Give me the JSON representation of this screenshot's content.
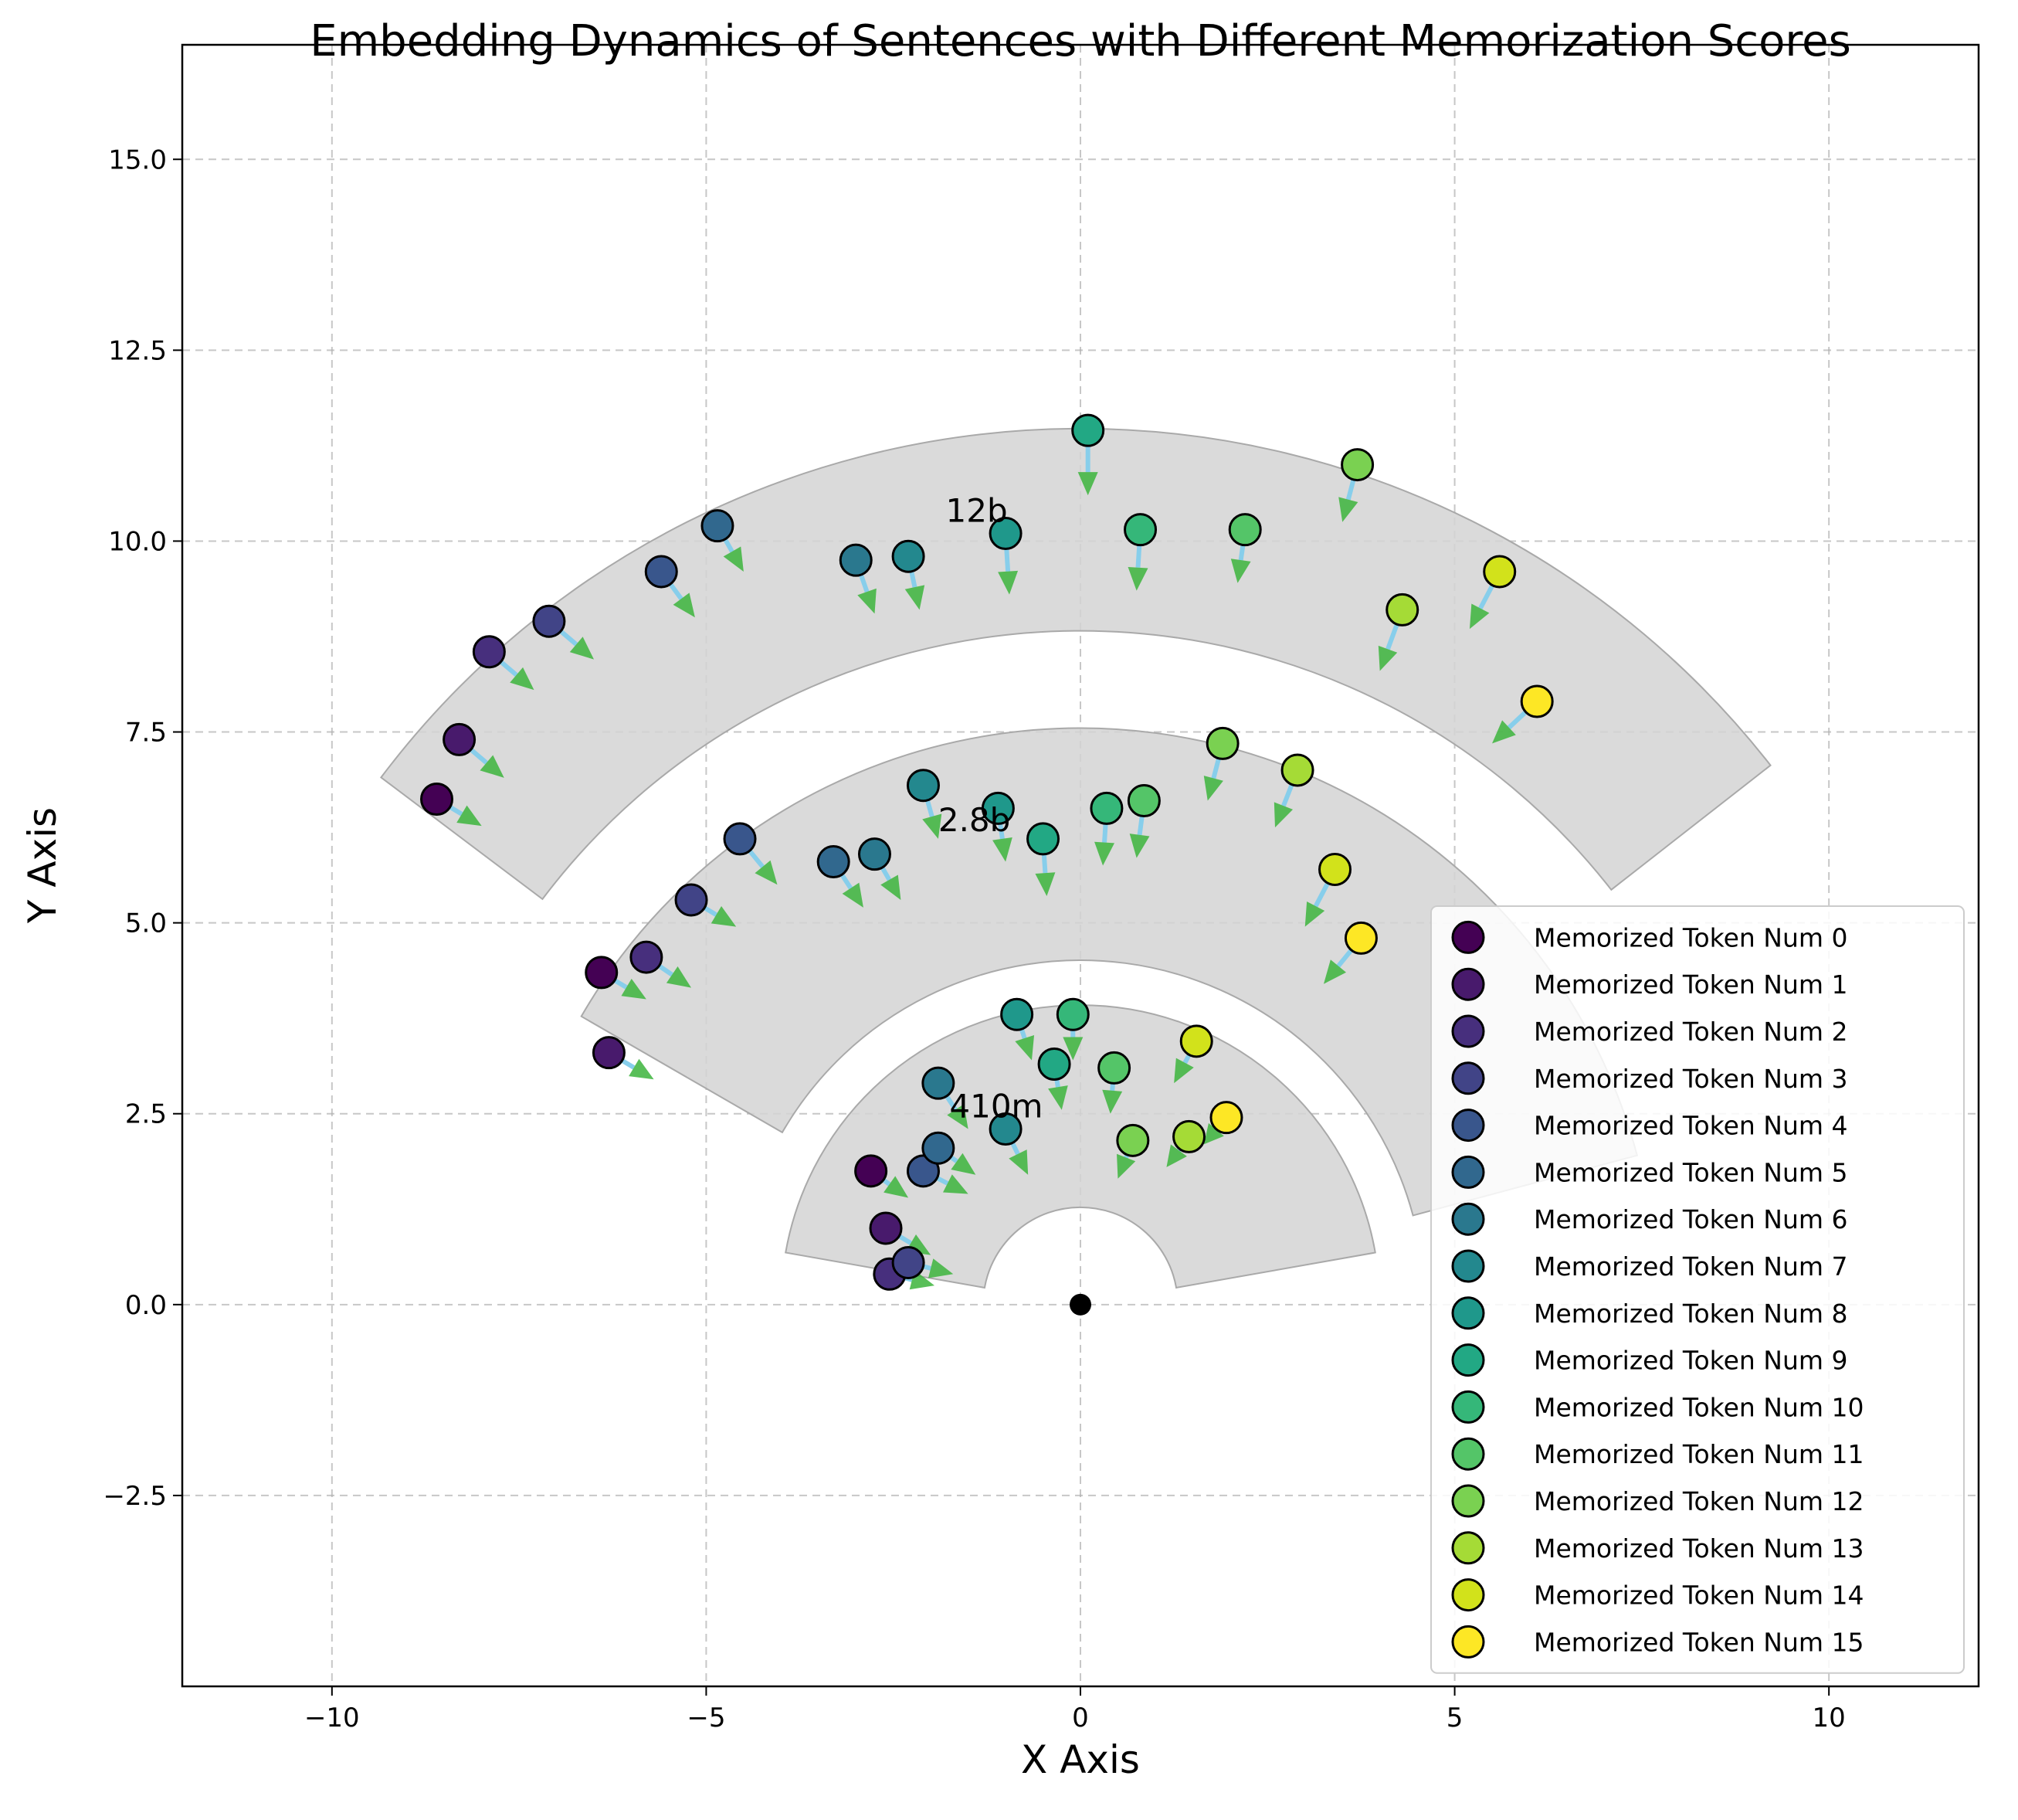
{
  "chart_data": {
    "type": "scatter",
    "title": "Embedding Dynamics of Sentences with Different Memorization Scores",
    "xlabel": "X Axis",
    "ylabel": "Y Axis",
    "xlim": [
      -12,
      12
    ],
    "ylim": [
      -5,
      16.5
    ],
    "x_ticks": [
      -10,
      -5,
      0,
      5,
      10
    ],
    "x_tick_labels": [
      "−10",
      "−5",
      "0",
      "5",
      "10"
    ],
    "y_ticks": [
      -2.5,
      0,
      2.5,
      5,
      7.5,
      10,
      12.5,
      15
    ],
    "y_tick_labels": [
      "−2.5",
      "0.0",
      "2.5",
      "5.0",
      "7.5",
      "10.0",
      "12.5",
      "15.0"
    ],
    "grid": true,
    "legend_position": "lower-right",
    "origin": [
      0,
      0
    ],
    "colors": [
      "#440154",
      "#481a6c",
      "#472f7d",
      "#414487",
      "#39568c",
      "#31688e",
      "#2a788e",
      "#23888e",
      "#1f988b",
      "#22a884",
      "#35b779",
      "#54c568",
      "#7ad151",
      "#a5db36",
      "#d2e21b",
      "#fde725"
    ],
    "arrow_colors": {
      "shaft": "#87ceeb",
      "head": "#3cb43c"
    },
    "band_color": "#d3d3d3",
    "series": [
      {
        "name": "Memorized Token Num 0",
        "points": [
          [
            -2.8,
            1.75,
            0.5,
            -0.35
          ],
          [
            -6.4,
            4.35,
            0.6,
            -0.35
          ],
          [
            -8.6,
            6.62,
            0.6,
            -0.35
          ]
        ]
      },
      {
        "name": "Memorized Token Num 1",
        "points": [
          [
            -2.6,
            1.0,
            0.6,
            -0.35
          ],
          [
            -6.3,
            3.3,
            0.6,
            -0.35
          ],
          [
            -8.3,
            7.4,
            0.6,
            -0.5
          ]
        ]
      },
      {
        "name": "Memorized Token Num 2",
        "points": [
          [
            -2.55,
            0.4,
            0.6,
            -0.15
          ],
          [
            -5.8,
            4.55,
            0.6,
            -0.4
          ],
          [
            -7.9,
            8.55,
            0.6,
            -0.5
          ]
        ]
      },
      {
        "name": "Memorized Token Num 3",
        "points": [
          [
            -2.3,
            0.55,
            0.6,
            -0.15
          ],
          [
            -5.2,
            5.3,
            0.6,
            -0.35
          ],
          [
            -7.1,
            8.95,
            0.6,
            -0.5
          ]
        ]
      },
      {
        "name": "Memorized Token Num 4",
        "points": [
          [
            -2.1,
            1.75,
            0.6,
            -0.3
          ],
          [
            -4.55,
            6.1,
            0.5,
            -0.6
          ],
          [
            -5.6,
            9.6,
            0.45,
            -0.6
          ]
        ]
      },
      {
        "name": "Memorized Token Num 5",
        "points": [
          [
            -1.9,
            2.05,
            0.5,
            -0.35
          ],
          [
            -3.3,
            5.8,
            0.4,
            -0.6
          ],
          [
            -4.85,
            10.2,
            0.35,
            -0.6
          ]
        ]
      },
      {
        "name": "Memorized Token Num 6",
        "points": [
          [
            -1.9,
            2.9,
            0.4,
            -0.6
          ],
          [
            -2.75,
            5.9,
            0.35,
            -0.6
          ],
          [
            -3.0,
            9.75,
            0.25,
            -0.7
          ]
        ]
      },
      {
        "name": "Memorized Token Num 7",
        "points": [
          [
            -1.0,
            2.3,
            0.3,
            -0.6
          ],
          [
            -2.1,
            6.8,
            0.2,
            -0.7
          ],
          [
            -2.3,
            9.8,
            0.15,
            -0.7
          ]
        ]
      },
      {
        "name": "Memorized Token Num 8",
        "points": [
          [
            -0.85,
            3.8,
            0.2,
            -0.6
          ],
          [
            -1.1,
            6.5,
            0.1,
            -0.7
          ],
          [
            -1.0,
            10.1,
            0.05,
            -0.8
          ]
        ]
      },
      {
        "name": "Memorized Token Num 9",
        "points": [
          [
            -0.35,
            3.15,
            0.1,
            -0.6
          ],
          [
            -0.5,
            6.1,
            0.05,
            -0.75
          ],
          [
            0.1,
            11.45,
            0.0,
            -0.85
          ]
        ]
      },
      {
        "name": "Memorized Token Num 10",
        "points": [
          [
            -0.1,
            3.8,
            0.0,
            -0.6
          ],
          [
            0.35,
            6.5,
            -0.05,
            -0.75
          ],
          [
            0.8,
            10.15,
            -0.05,
            -0.8
          ]
        ]
      },
      {
        "name": "Memorized Token Num 11",
        "points": [
          [
            0.45,
            3.1,
            -0.05,
            -0.6
          ],
          [
            0.85,
            6.6,
            -0.1,
            -0.75
          ],
          [
            2.2,
            10.15,
            -0.1,
            -0.7
          ]
        ]
      },
      {
        "name": "Memorized Token Num 12",
        "points": [
          [
            0.7,
            2.15,
            -0.2,
            -0.5
          ],
          [
            1.9,
            7.35,
            -0.2,
            -0.75
          ],
          [
            3.7,
            11.0,
            -0.2,
            -0.75
          ]
        ]
      },
      {
        "name": "Memorized Token Num 13",
        "points": [
          [
            1.45,
            2.2,
            -0.3,
            -0.4
          ],
          [
            2.9,
            7.0,
            -0.3,
            -0.75
          ],
          [
            4.3,
            9.1,
            -0.3,
            -0.8
          ]
        ]
      },
      {
        "name": "Memorized Token Num 14",
        "points": [
          [
            1.55,
            3.45,
            -0.3,
            -0.55
          ],
          [
            3.4,
            5.7,
            -0.4,
            -0.75
          ],
          [
            5.6,
            9.6,
            -0.4,
            -0.75
          ]
        ]
      },
      {
        "name": "Memorized Token Num 15",
        "points": [
          [
            1.95,
            2.45,
            -0.3,
            -0.35
          ],
          [
            3.75,
            4.8,
            -0.5,
            -0.6
          ],
          [
            6.1,
            7.9,
            -0.6,
            -0.55
          ]
        ]
      }
    ],
    "annotations": [
      {
        "text": "410m",
        "x": -1.75,
        "y": 2.45
      },
      {
        "text": "2.8b",
        "x": -1.9,
        "y": 6.2
      },
      {
        "text": "12b",
        "x": -1.8,
        "y": 10.25
      }
    ],
    "bands": [
      {
        "r_inner": 1.3,
        "r_outer": 4.0,
        "theta_start_deg": 10,
        "theta_end_deg": 170
      },
      {
        "r_inner": 4.6,
        "r_outer": 7.7,
        "theta_start_deg": 15,
        "theta_end_deg": 150
      },
      {
        "r_inner": 9.0,
        "r_outer": 11.7,
        "theta_start_deg": 38,
        "theta_end_deg": 143
      }
    ]
  }
}
